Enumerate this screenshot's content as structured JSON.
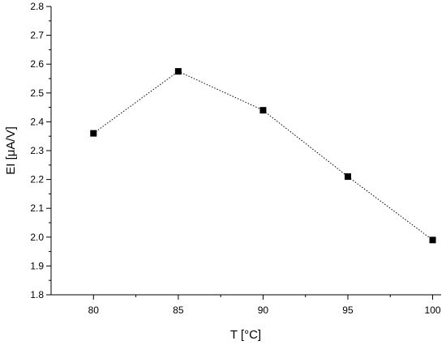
{
  "chart_data": {
    "type": "line",
    "title": "",
    "xlabel": "T [°C]",
    "ylabel": "EI [μA/V]",
    "x": [
      80,
      85,
      90,
      95,
      100
    ],
    "series": [
      {
        "name": "",
        "values": [
          2.36,
          2.575,
          2.44,
          2.21,
          1.99
        ]
      }
    ],
    "xlim": [
      77.5,
      100.5
    ],
    "ylim": [
      1.8,
      2.8
    ],
    "xticks": [
      "80",
      "85",
      "90",
      "95",
      "100"
    ],
    "yticks": [
      "1.8",
      "1.9",
      "2.0",
      "2.1",
      "2.2",
      "2.3",
      "2.4",
      "2.5",
      "2.6",
      "2.7",
      "2.8"
    ],
    "grid": false,
    "line_style": "dotted",
    "marker": "square",
    "colors": {
      "series": "#000000",
      "axis": "#000000"
    }
  }
}
